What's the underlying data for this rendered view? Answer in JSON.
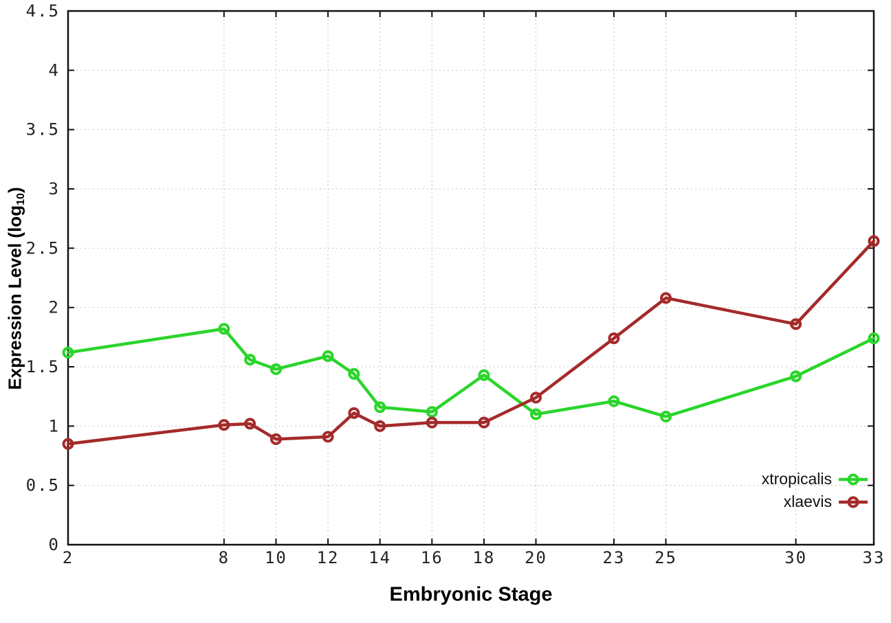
{
  "chart_data": {
    "type": "line",
    "xlabel": "Embryonic Stage",
    "ylabel_pre": "Expression Level (log",
    "ylabel_sub": "10",
    "ylabel_post": ")",
    "xlim": [
      2,
      33
    ],
    "ylim": [
      0,
      4.5
    ],
    "grid": true,
    "legend_position": "bottom-right",
    "x": [
      2,
      8,
      9,
      10,
      12,
      13,
      14,
      16,
      18,
      20,
      23,
      25,
      30,
      33
    ],
    "xticks": [
      2,
      8,
      10,
      12,
      14,
      16,
      18,
      20,
      23,
      25,
      30,
      33
    ],
    "xtick_labels": [
      "2",
      "8",
      "10",
      "12",
      "14",
      "16",
      "18",
      "20",
      "23",
      "25",
      "30",
      "33"
    ],
    "yticks": [
      0,
      0.5,
      1,
      1.5,
      2,
      2.5,
      3,
      3.5,
      4,
      4.5
    ],
    "ytick_labels": [
      "0",
      "0.5",
      "1",
      "1.5",
      "2",
      "2.5",
      "3",
      "3.5",
      "4",
      "4.5"
    ],
    "series": [
      {
        "name": "xtropicalis",
        "color": "#2ad52a",
        "values": [
          1.62,
          1.82,
          1.56,
          1.48,
          1.59,
          1.44,
          1.16,
          1.12,
          1.43,
          1.1,
          1.21,
          1.08,
          1.42,
          1.74
        ]
      },
      {
        "name": "xlaevis",
        "color": "#a52a2a",
        "values": [
          0.85,
          1.01,
          1.02,
          0.89,
          0.91,
          1.11,
          1.0,
          1.03,
          1.03,
          1.24,
          1.74,
          2.08,
          1.86,
          2.56
        ]
      }
    ]
  }
}
